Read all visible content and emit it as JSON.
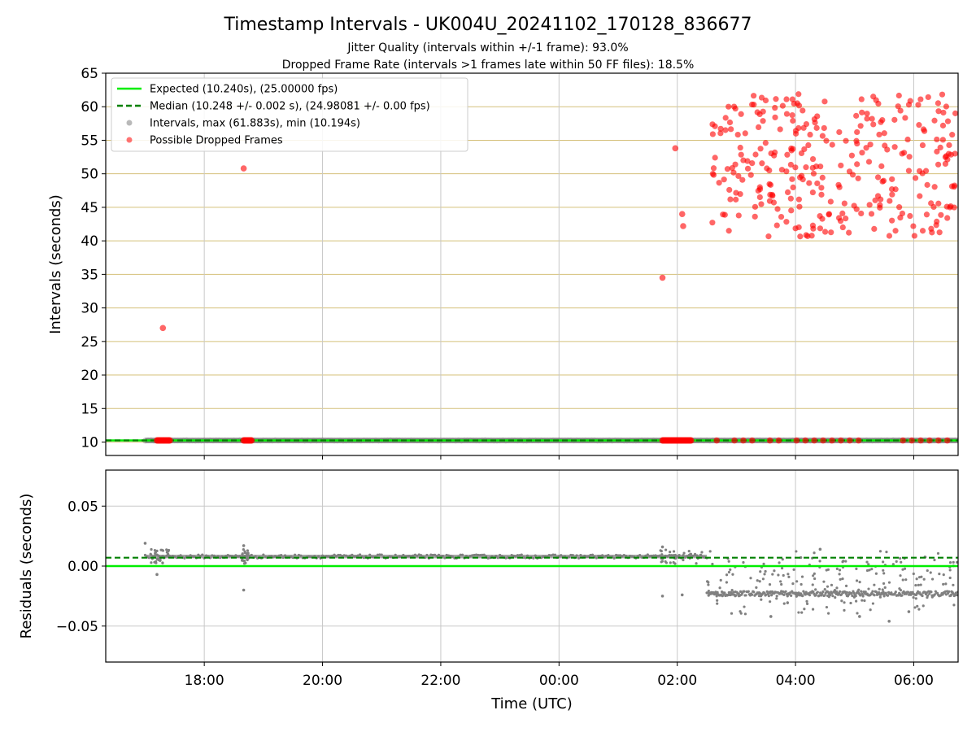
{
  "title": "Timestamp Intervals - UK004U_20241102_170128_836677",
  "subtitles": [
    "Jitter Quality (intervals within +/-1 frame): 93.0%",
    "Dropped Frame Rate (intervals >1 frames late within 50 FF files): 18.5%"
  ],
  "colors": {
    "expected": "#00ee00",
    "median": "#008000",
    "intervals": "#808080",
    "dropped": "#ff0000",
    "gridline_top": "#d4c07a",
    "grid": "#c8c8c8"
  },
  "chart_data": [
    {
      "type": "scatter",
      "panel": "intervals",
      "xlabel": "",
      "ylabel": "Intervals (seconds)",
      "xlim": [
        "16:20",
        "06:45"
      ],
      "ylim": [
        8,
        65
      ],
      "yticks": [
        "10",
        "15",
        "20",
        "25",
        "30",
        "35",
        "40",
        "45",
        "50",
        "55",
        "60",
        "65"
      ],
      "grid": "horizontal gridlines in gold, vertical gridlines in gray",
      "legend": {
        "placement": "top-left",
        "entries": [
          "Expected (10.240s), (25.00000 fps)",
          "Median (10.248 +/- 0.002 s), (24.98081 +/- 0.00 fps)",
          "Intervals, max (61.883s), min (10.194s)",
          "Possible Dropped Frames"
        ]
      },
      "expected_line": 10.24,
      "median_line": 10.248,
      "intervals_series": {
        "name": "Intervals, max (61.883s), min (10.194s)",
        "x_range": [
          "17:00",
          "06:45"
        ],
        "y_range": [
          10.194,
          10.28
        ]
      },
      "dropped_frames_series": {
        "name": "Possible Dropped Frames",
        "points": [
          {
            "x": "17:18",
            "y": 27.0
          },
          {
            "x": "18:40",
            "y": 50.8
          },
          {
            "x": "01:45",
            "y": 34.5
          },
          {
            "x": "01:58",
            "y": 53.8
          },
          {
            "x": "02:05",
            "y": 44.0
          },
          {
            "x": "02:06",
            "y": 42.2
          }
        ],
        "cluster": {
          "x_range": [
            "02:35",
            "06:45"
          ],
          "y_range": [
            40.5,
            62
          ],
          "count": 300
        },
        "baseline_clusters": [
          {
            "x_range": [
              "17:12",
              "17:25"
            ],
            "y": 10.24
          },
          {
            "x_range": [
              "18:40",
              "18:48"
            ],
            "y": 10.24
          },
          {
            "x_range": [
              "01:45",
              "01:57"
            ],
            "y": 10.24
          },
          {
            "x_range": [
              "01:58",
              "02:14"
            ],
            "y": 10.24
          }
        ]
      }
    },
    {
      "type": "scatter",
      "panel": "residuals",
      "xlabel": "Time (UTC)",
      "ylabel": "Residuals (seconds)",
      "xlim": [
        "16:20",
        "06:45"
      ],
      "ylim": [
        -0.08,
        0.08
      ],
      "yticks": [
        "0.05",
        "0.00",
        "−0.05"
      ],
      "xticks": [
        "18:00",
        "20:00",
        "22:00",
        "00:00",
        "02:00",
        "04:00",
        "06:00"
      ],
      "grid": "gray gridlines",
      "expected_line": 0.0,
      "median_line": 0.007,
      "residuals_series": {
        "segment_1": {
          "x_range": [
            "17:00",
            "02:30"
          ],
          "y_typical": 0.008
        },
        "segment_2": {
          "x_range": [
            "02:30",
            "06:45"
          ],
          "y_typical": -0.023
        },
        "outliers": [
          {
            "x": "17:00",
            "y": 0.019
          },
          {
            "x": "17:12",
            "y": -0.007
          },
          {
            "x": "18:40",
            "y": 0.017
          },
          {
            "x": "18:40",
            "y": -0.02
          },
          {
            "x": "01:45",
            "y": 0.016
          },
          {
            "x": "01:45",
            "y": -0.025
          },
          {
            "x": "02:05",
            "y": -0.024
          },
          {
            "x": "03:35",
            "y": -0.042
          },
          {
            "x": "04:25",
            "y": 0.014
          },
          {
            "x": "05:05",
            "y": -0.042
          },
          {
            "x": "05:35",
            "y": -0.046
          },
          {
            "x": "05:55",
            "y": -0.038
          }
        ]
      }
    }
  ]
}
